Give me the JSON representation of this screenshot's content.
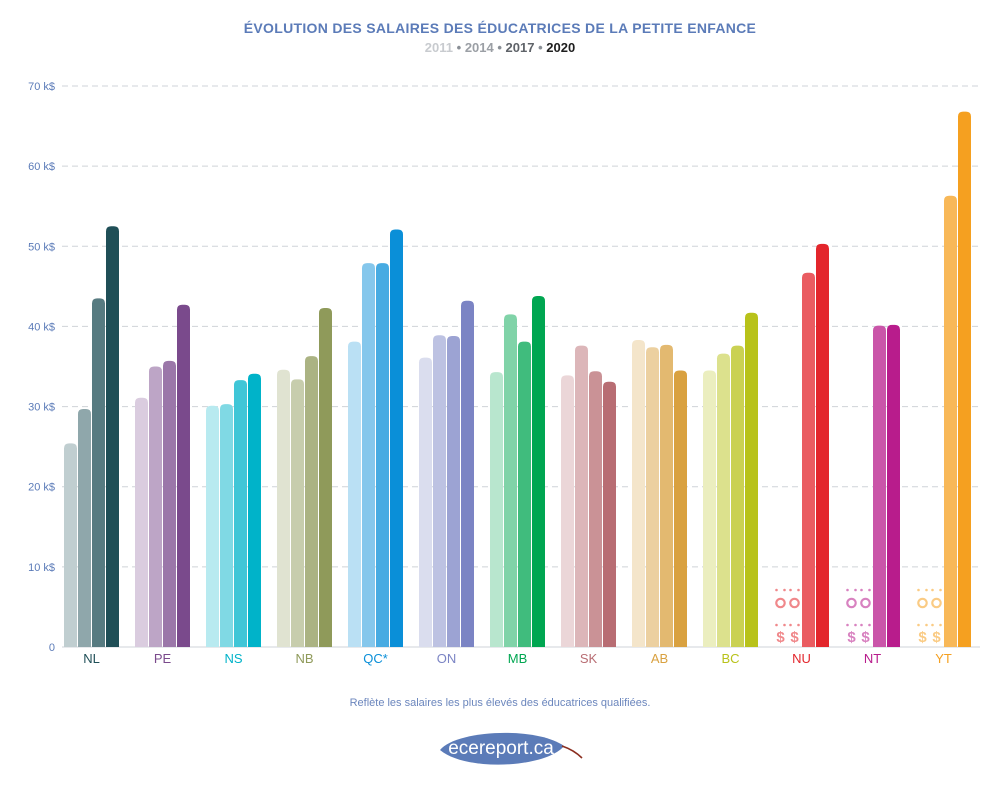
{
  "title": "ÉVOLUTION DES SALAIRES DES ÉDUCATRICES DE LA PETITE ENFANCE",
  "subtitle": {
    "years": [
      {
        "label": "2011",
        "color": "#c8cbcf"
      },
      {
        "label": "2014",
        "color": "#9b9fa5"
      },
      {
        "label": "2017",
        "color": "#5f6369"
      },
      {
        "label": "2020",
        "color": "#1e1e1e"
      }
    ],
    "separator": "•"
  },
  "footnote": "Reflète les salaires les plus élevés des éducatrices qualifiées.",
  "logo_text": "ecereport.ca",
  "colors": {
    "axis_text": "#5b7bb8",
    "grid": "#cfd3d8",
    "logo_leaf": "#5b7bb8",
    "logo_stem": "#8b2e1f"
  },
  "chart_data": {
    "type": "bar",
    "ylim": [
      0,
      70
    ],
    "ytick_values": [
      0,
      10,
      20,
      30,
      40,
      50,
      60,
      70
    ],
    "ytick_labels": [
      "0",
      "10 k$",
      "20 k$",
      "30 k$",
      "40 k$",
      "50 k$",
      "60 k$",
      "70 k$"
    ],
    "grid": true,
    "categories": [
      "NL",
      "PE",
      "NS",
      "NB",
      "QC*",
      "ON",
      "MB",
      "SK",
      "AB",
      "BC",
      "NU",
      "NT",
      "YT"
    ],
    "category_colors": [
      "#1f4f57",
      "#7a4a8c",
      "#00b3c9",
      "#8f9a5a",
      "#0a8fd8",
      "#7b84c4",
      "#00a651",
      "#b86d73",
      "#d9a140",
      "#b8c21a",
      "#e3262c",
      "#b81c8c",
      "#f5a020"
    ],
    "series": [
      {
        "name": "2011",
        "values": [
          25.4,
          31.1,
          30.1,
          34.6,
          38.1,
          36.1,
          34.3,
          33.9,
          38.3,
          34.5,
          null,
          null,
          null
        ]
      },
      {
        "name": "2014",
        "values": [
          29.7,
          35.0,
          30.3,
          33.4,
          47.9,
          38.9,
          41.5,
          37.6,
          37.4,
          36.6,
          null,
          null,
          null
        ]
      },
      {
        "name": "2017",
        "values": [
          43.5,
          35.7,
          33.3,
          36.3,
          47.9,
          38.8,
          38.1,
          34.4,
          37.7,
          37.6,
          46.7,
          40.1,
          56.3
        ]
      },
      {
        "name": "2020",
        "values": [
          52.5,
          42.7,
          34.1,
          42.3,
          52.1,
          43.2,
          43.8,
          33.1,
          34.5,
          41.7,
          50.3,
          40.2,
          66.8
        ]
      }
    ],
    "missing_marker": "$$"
  }
}
